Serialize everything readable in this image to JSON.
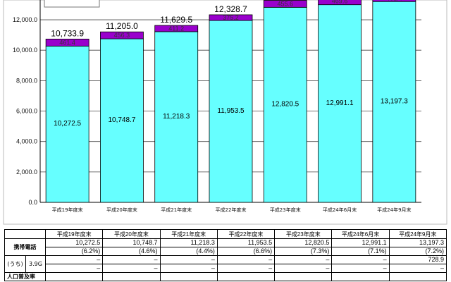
{
  "chart_data": {
    "type": "bar",
    "stacked": true,
    "categories": [
      "平成19年度末",
      "平成20年度末",
      "平成21年度末",
      "平成22年度末",
      "平成23年度末",
      "平成24年6月末",
      "平成24年9月末"
    ],
    "series": [
      {
        "values": [
          10272.5,
          10748.7,
          11218.3,
          11953.5,
          12820.5,
          12991.1,
          13197.3
        ],
        "color": "#66ffff",
        "labels": [
          "10,272.5",
          "10,748.7",
          "11,218.3",
          "11,953.5",
          "12,820.5",
          "12,991.1",
          "13,197.3"
        ]
      },
      {
        "values": [
          461.4,
          456.3,
          411.2,
          375.2,
          455.6,
          469.6,
          461.4
        ],
        "color": "#9900cc",
        "labels": [
          "461.4",
          "456.3",
          "411.2",
          "375.2",
          "455.6",
          "469.6",
          "461.4"
        ]
      }
    ],
    "totals": [
      10733.9,
      11205.0,
      11629.5,
      12328.7,
      null,
      null,
      null
    ],
    "total_labels": [
      "10,733.9",
      "11,205.0",
      "11,629.5",
      "12,328.7"
    ],
    "ylim": [
      0,
      13300
    ],
    "yticks": [
      0,
      2000,
      4000,
      6000,
      8000,
      10000,
      12000
    ],
    "ytick_labels": [
      "0.0",
      "2,000.0",
      "4,000.0",
      "6,000.0",
      "8,000.0",
      "10,000.0",
      "12,000.0"
    ],
    "grid": true
  },
  "table": {
    "headers": [
      "平成19年度末",
      "平成20年度末",
      "平成21年度末",
      "平成22年度末",
      "平成23年度末",
      "平成24年6月末",
      "平成24年9月末"
    ],
    "rows": {
      "mobile_label": "携帯電話",
      "mobile_values": [
        "10,272.5",
        "10,748.7",
        "11,218.3",
        "11,953.5",
        "12,820.5",
        "12,991.1",
        "13,197.3"
      ],
      "mobile_growth": [
        "(6.2%)",
        "(4.6%)",
        "(4.4%)",
        "(6.6%)",
        "(7.3%)",
        "(7.1%)",
        "(7.2%)"
      ],
      "sub_label": "(うち)",
      "sub_type": "3.9G",
      "sub_values": [
        "–",
        "–",
        "–",
        "–",
        "–",
        "–",
        "728.9"
      ],
      "sub_growth": [
        "–",
        "–",
        "–",
        "–",
        "–",
        "–",
        "–"
      ],
      "pop_label": "人口普及率"
    }
  },
  "colors": {
    "mobile": "#66ffff",
    "phs": "#9900cc",
    "border": "#000000"
  }
}
